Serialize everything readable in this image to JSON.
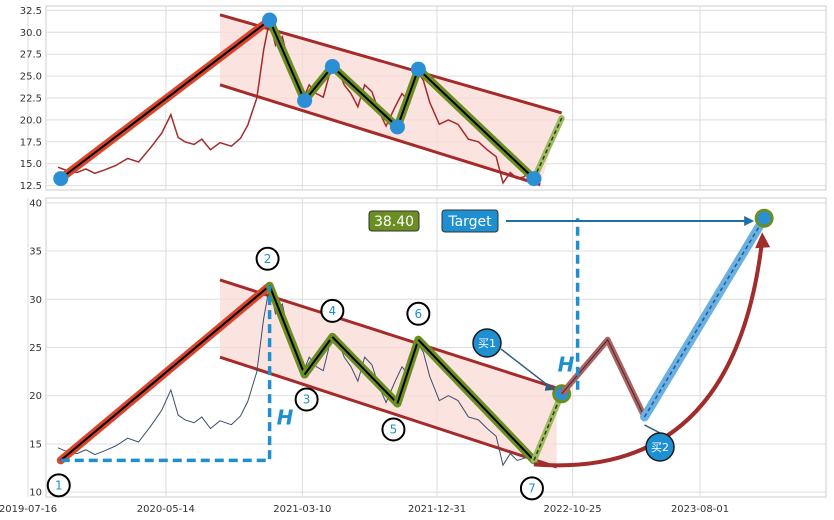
{
  "chart_data": [
    {
      "type": "line",
      "panel": "top",
      "ylim": [
        12.0,
        33.0
      ],
      "yticks": [
        "12.5",
        "15.0",
        "17.5",
        "20.0",
        "22.5",
        "25.0",
        "27.5",
        "30.0",
        "32.5"
      ],
      "grid": true,
      "price_series_color": "#a52a2a",
      "price_points": [
        [
          "2019-09-20",
          14.6
        ],
        [
          "2019-10-10",
          14.2
        ],
        [
          "2019-11-01",
          14.0
        ],
        [
          "2019-11-20",
          14.4
        ],
        [
          "2019-12-10",
          13.9
        ],
        [
          "2020-01-01",
          14.3
        ],
        [
          "2020-01-25",
          14.8
        ],
        [
          "2020-02-20",
          15.6
        ],
        [
          "2020-03-15",
          15.2
        ],
        [
          "2020-04-10",
          16.8
        ],
        [
          "2020-05-05",
          18.5
        ],
        [
          "2020-05-25",
          20.6
        ],
        [
          "2020-06-10",
          18.0
        ],
        [
          "2020-06-25",
          17.5
        ],
        [
          "2020-07-15",
          17.2
        ],
        [
          "2020-08-01",
          17.8
        ],
        [
          "2020-08-20",
          16.6
        ],
        [
          "2020-09-10",
          17.4
        ],
        [
          "2020-10-05",
          17.0
        ],
        [
          "2020-10-25",
          17.9
        ],
        [
          "2020-11-10",
          19.4
        ],
        [
          "2020-11-30",
          22.5
        ],
        [
          "2020-12-15",
          28.0
        ],
        [
          "2020-12-28",
          31.4
        ],
        [
          "2021-01-10",
          28.5
        ],
        [
          "2021-01-25",
          29.5
        ],
        [
          "2021-02-10",
          26.0
        ],
        [
          "2021-02-25",
          24.0
        ],
        [
          "2021-03-10",
          22.2
        ],
        [
          "2021-03-25",
          24.0
        ],
        [
          "2021-04-10",
          23.0
        ],
        [
          "2021-04-25",
          22.6
        ],
        [
          "2021-05-10",
          25.5
        ],
        [
          "2021-05-25",
          26.0
        ],
        [
          "2021-06-10",
          24.0
        ],
        [
          "2021-06-25",
          23.0
        ],
        [
          "2021-07-10",
          21.5
        ],
        [
          "2021-07-25",
          24.0
        ],
        [
          "2021-08-10",
          23.2
        ],
        [
          "2021-08-25",
          21.0
        ],
        [
          "2021-09-10",
          19.3
        ],
        [
          "2021-09-30",
          21.5
        ],
        [
          "2021-10-15",
          23.0
        ],
        [
          "2021-11-01",
          22.0
        ],
        [
          "2021-11-15",
          25.8
        ],
        [
          "2021-12-01",
          24.5
        ],
        [
          "2021-12-15",
          22.0
        ],
        [
          "2022-01-05",
          19.5
        ],
        [
          "2022-01-25",
          20.0
        ],
        [
          "2022-02-15",
          19.5
        ],
        [
          "2022-03-10",
          17.8
        ],
        [
          "2022-04-01",
          17.5
        ],
        [
          "2022-04-20",
          16.6
        ],
        [
          "2022-05-10",
          15.8
        ],
        [
          "2022-05-25",
          12.8
        ],
        [
          "2022-06-10",
          14.0
        ],
        [
          "2022-06-25",
          13.3
        ],
        [
          "2022-07-10",
          13.5
        ],
        [
          "2022-07-25",
          14.2
        ]
      ],
      "wave_points": [
        [
          "2019-09-26",
          13.3
        ],
        [
          "2020-12-28",
          31.4
        ],
        [
          "2021-03-15",
          22.2
        ],
        [
          "2021-05-15",
          26.1
        ],
        [
          "2021-10-05",
          19.2
        ],
        [
          "2021-11-20",
          25.8
        ],
        [
          "2022-08-01",
          13.3
        ],
        [
          "2022-10-01",
          20.2
        ]
      ],
      "channel_upper": [
        [
          "2020-09-10",
          32.0
        ],
        [
          "2022-10-01",
          20.8
        ]
      ],
      "channel_lower": [
        [
          "2020-09-10",
          24.0
        ],
        [
          "2022-08-15",
          12.6
        ]
      ]
    },
    {
      "type": "line",
      "panel": "bottom",
      "ylim": [
        9.5,
        40.5
      ],
      "yticks": [
        "10",
        "15",
        "20",
        "25",
        "30",
        "35",
        "40"
      ],
      "xticks": [
        "2019-07-16",
        "2020-05-14",
        "2021-03-10",
        "2021-12-31",
        "2022-10-25",
        "2023-08-01"
      ],
      "grid": true,
      "price_series_color": "#3d4e6b",
      "price_points": [
        [
          "2019-09-20",
          14.6
        ],
        [
          "2019-10-10",
          14.2
        ],
        [
          "2019-11-01",
          14.0
        ],
        [
          "2019-11-20",
          14.4
        ],
        [
          "2019-12-10",
          13.9
        ],
        [
          "2020-01-01",
          14.3
        ],
        [
          "2020-01-25",
          14.8
        ],
        [
          "2020-02-20",
          15.6
        ],
        [
          "2020-03-15",
          15.2
        ],
        [
          "2020-04-10",
          16.8
        ],
        [
          "2020-05-05",
          18.5
        ],
        [
          "2020-05-25",
          20.6
        ],
        [
          "2020-06-10",
          18.0
        ],
        [
          "2020-06-25",
          17.5
        ],
        [
          "2020-07-15",
          17.2
        ],
        [
          "2020-08-01",
          17.8
        ],
        [
          "2020-08-20",
          16.6
        ],
        [
          "2020-09-10",
          17.4
        ],
        [
          "2020-10-05",
          17.0
        ],
        [
          "2020-10-25",
          17.9
        ],
        [
          "2020-11-10",
          19.4
        ],
        [
          "2020-11-30",
          22.5
        ],
        [
          "2020-12-15",
          28.0
        ],
        [
          "2020-12-28",
          31.4
        ],
        [
          "2021-01-10",
          28.5
        ],
        [
          "2021-01-25",
          29.5
        ],
        [
          "2021-02-10",
          26.0
        ],
        [
          "2021-02-25",
          24.0
        ],
        [
          "2021-03-10",
          22.2
        ],
        [
          "2021-03-25",
          24.0
        ],
        [
          "2021-04-10",
          23.0
        ],
        [
          "2021-04-25",
          22.6
        ],
        [
          "2021-05-10",
          25.5
        ],
        [
          "2021-05-25",
          26.0
        ],
        [
          "2021-06-10",
          24.0
        ],
        [
          "2021-06-25",
          23.0
        ],
        [
          "2021-07-10",
          21.5
        ],
        [
          "2021-07-25",
          24.0
        ],
        [
          "2021-08-10",
          23.2
        ],
        [
          "2021-08-25",
          21.0
        ],
        [
          "2021-09-10",
          19.3
        ],
        [
          "2021-09-30",
          21.5
        ],
        [
          "2021-10-15",
          23.0
        ],
        [
          "2021-11-01",
          22.0
        ],
        [
          "2021-11-15",
          25.8
        ],
        [
          "2021-12-01",
          24.5
        ],
        [
          "2021-12-15",
          22.0
        ],
        [
          "2022-01-05",
          19.5
        ],
        [
          "2022-01-25",
          20.0
        ],
        [
          "2022-02-15",
          19.5
        ],
        [
          "2022-03-10",
          17.8
        ],
        [
          "2022-04-01",
          17.5
        ],
        [
          "2022-04-20",
          16.6
        ],
        [
          "2022-05-10",
          15.8
        ],
        [
          "2022-05-25",
          12.8
        ],
        [
          "2022-06-10",
          14.0
        ],
        [
          "2022-06-25",
          13.3
        ],
        [
          "2022-07-10",
          13.5
        ],
        [
          "2022-07-25",
          14.2
        ]
      ],
      "wave_points": [
        [
          "2019-09-26",
          13.3
        ],
        [
          "2020-12-28",
          31.4
        ],
        [
          "2021-03-15",
          22.2
        ],
        [
          "2021-05-15",
          26.1
        ],
        [
          "2021-10-05",
          19.2
        ],
        [
          "2021-11-20",
          25.8
        ],
        [
          "2022-08-01",
          13.3
        ],
        [
          "2022-10-01",
          20.2
        ]
      ],
      "wave_labels": [
        "1",
        "2",
        "3",
        "4",
        "5",
        "6",
        "7"
      ],
      "channel_upper": [
        [
          "2020-09-10",
          32.0
        ],
        [
          "2022-09-20",
          20.8
        ]
      ],
      "channel_lower": [
        [
          "2020-09-10",
          24.0
        ],
        [
          "2022-09-20",
          12.6
        ]
      ],
      "projection": [
        [
          "2022-11-05",
          20.2
        ],
        [
          "2023-01-10",
          25.8
        ],
        [
          "2023-04-01",
          17.8
        ],
        [
          "2023-12-20",
          38.4
        ]
      ],
      "target_value": "38.40",
      "target_label": "Target",
      "height_label": "H",
      "buy_labels": [
        "买1",
        "买2"
      ],
      "colors": {
        "impulse": "#d9452b",
        "wave": "#6b8e23",
        "channel": "#a52a2a",
        "fill": "#f9d9d4",
        "accent": "#1e8fd0",
        "target_box": "#1e8fd0",
        "value_box": "#6b8e23"
      }
    }
  ]
}
